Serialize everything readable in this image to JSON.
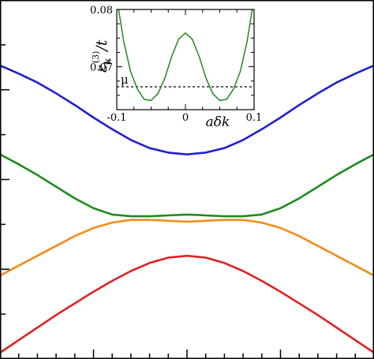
{
  "colors": {
    "frame": "#000000",
    "blue": "#1f1fd1",
    "green": "#1f8a1f",
    "orange": "#f28c1a",
    "red": "#e02020",
    "inset_curve": "#1f8a1f",
    "mu_line": "#000000"
  },
  "chart_data": [
    {
      "type": "line",
      "title": "",
      "xlabel": "",
      "ylabel": "",
      "x": [
        -1.0,
        -0.9,
        -0.8,
        -0.7,
        -0.6,
        -0.5,
        -0.4,
        -0.3,
        -0.2,
        -0.1,
        0.0,
        0.1,
        0.2,
        0.3,
        0.4,
        0.5,
        0.6,
        0.7,
        0.8,
        0.9,
        1.0
      ],
      "xlim": [
        -1.0,
        1.0
      ],
      "ylim": [
        0.0,
        4.0
      ],
      "grid": false,
      "series": [
        {
          "color": "blue",
          "values": [
            3.27,
            3.18,
            3.08,
            2.96,
            2.83,
            2.69,
            2.56,
            2.44,
            2.35,
            2.3,
            2.28,
            2.3,
            2.35,
            2.44,
            2.56,
            2.69,
            2.83,
            2.96,
            3.08,
            3.18,
            3.27
          ]
        },
        {
          "color": "green",
          "values": [
            2.28,
            2.17,
            2.05,
            1.92,
            1.79,
            1.68,
            1.61,
            1.59,
            1.59,
            1.6,
            1.61,
            1.6,
            1.59,
            1.59,
            1.61,
            1.68,
            1.79,
            1.92,
            2.05,
            2.17,
            2.28
          ]
        },
        {
          "color": "orange",
          "values": [
            0.93,
            1.04,
            1.15,
            1.26,
            1.37,
            1.46,
            1.52,
            1.55,
            1.55,
            1.54,
            1.53,
            1.54,
            1.55,
            1.55,
            1.52,
            1.46,
            1.37,
            1.26,
            1.15,
            1.04,
            0.93
          ]
        },
        {
          "color": "red",
          "values": [
            0.07,
            0.21,
            0.35,
            0.49,
            0.62,
            0.75,
            0.87,
            0.98,
            1.07,
            1.13,
            1.15,
            1.13,
            1.07,
            0.98,
            0.87,
            0.75,
            0.62,
            0.49,
            0.35,
            0.21,
            0.07
          ]
        }
      ]
    },
    {
      "type": "line",
      "title": "",
      "xlabel": "aδk",
      "ylabel": "ε_k^(3)/t",
      "ylabel_parts": {
        "epsilon": "ε",
        "sub": "k",
        "sup": "(3)",
        "rest": "/t"
      },
      "x_ticks": [
        "-0.1",
        "0",
        "0.1"
      ],
      "x_tick_values": [
        -0.1,
        0.0,
        0.1
      ],
      "y_ticks": [
        "0.07",
        "0.08"
      ],
      "y_tick_values": [
        0.07,
        0.08
      ],
      "xlim": [
        -0.1,
        0.1
      ],
      "ylim": [
        0.0625,
        0.08
      ],
      "annotations": [
        {
          "text": "μ",
          "y": 0.0665
        }
      ],
      "mu_level": 0.0665,
      "grid": false,
      "series": [
        {
          "color": "inset_curve",
          "x": [
            -0.1,
            -0.09,
            -0.08,
            -0.07,
            -0.06,
            -0.05,
            -0.04,
            -0.03,
            -0.02,
            -0.01,
            0.0,
            0.01,
            0.02,
            0.03,
            0.04,
            0.05,
            0.06,
            0.07,
            0.08,
            0.09,
            0.1
          ],
          "values": [
            0.0825,
            0.0745,
            0.0692,
            0.0661,
            0.0643,
            0.0641,
            0.0653,
            0.068,
            0.0718,
            0.0748,
            0.0759,
            0.0748,
            0.0718,
            0.068,
            0.0653,
            0.0641,
            0.0643,
            0.0661,
            0.0692,
            0.0745,
            0.0825
          ]
        }
      ]
    }
  ]
}
